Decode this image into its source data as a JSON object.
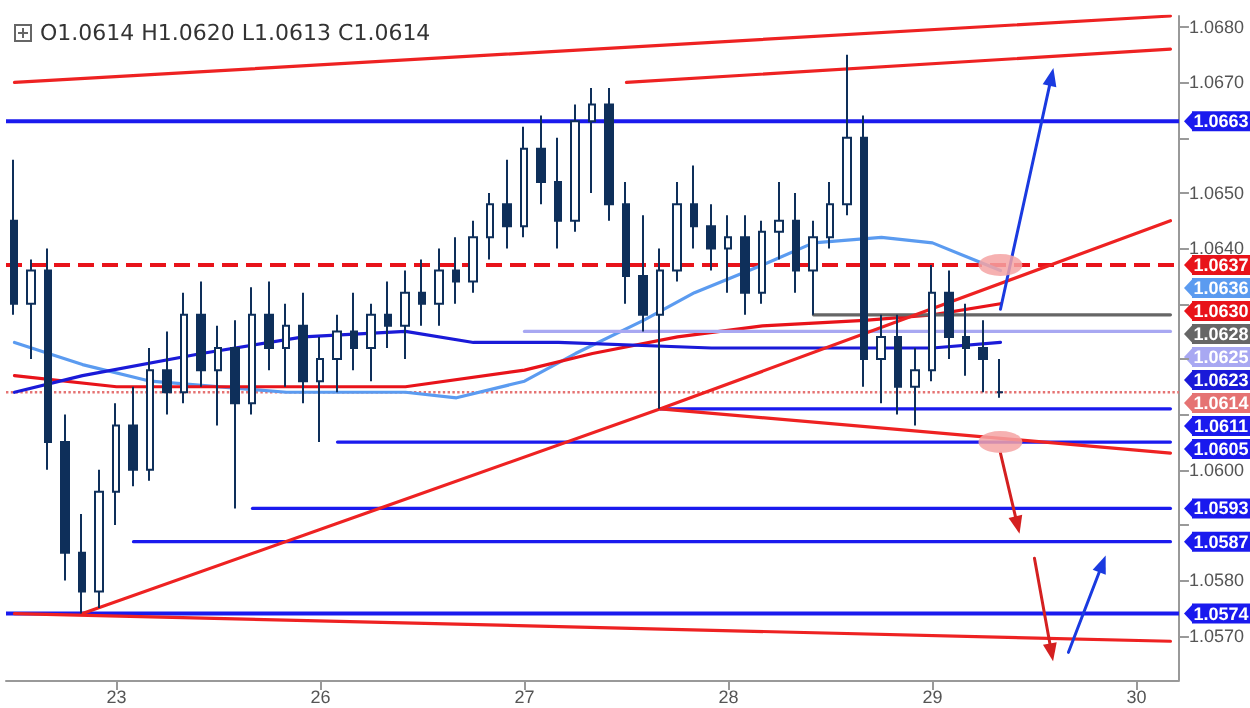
{
  "chart_data": {
    "type": "candlestick",
    "color": "#0e2f5a",
    "categories": [
      null,
      null,
      null,
      null,
      null,
      null,
      "23",
      null,
      null,
      null,
      null,
      null,
      null,
      null,
      null,
      null,
      null,
      null,
      "26",
      null,
      null,
      null,
      null,
      null,
      null,
      null,
      null,
      null,
      null,
      null,
      "27",
      null,
      null,
      null,
      null,
      null,
      null,
      null,
      null,
      null,
      null,
      null,
      "28",
      null,
      null,
      null,
      null,
      null,
      null,
      null,
      null,
      null,
      null,
      null,
      "29",
      null,
      null,
      null,
      null,
      null,
      null,
      null,
      null,
      null,
      null,
      null,
      "30",
      null,
      null
    ],
    "ohlc": [
      [
        1.0645,
        1.0656,
        1.0628,
        1.063
      ],
      [
        1.063,
        1.0638,
        1.062,
        1.0636
      ],
      [
        1.0636,
        1.064,
        1.06,
        1.0605
      ],
      [
        1.0605,
        1.061,
        1.058,
        1.0585
      ],
      [
        1.0585,
        1.0592,
        1.0574,
        1.0578
      ],
      [
        1.0578,
        1.06,
        1.0575,
        1.0596
      ],
      [
        1.0596,
        1.0612,
        1.059,
        1.0608
      ],
      [
        1.0608,
        1.0615,
        1.0597,
        1.06
      ],
      [
        1.06,
        1.0622,
        1.0598,
        1.0618
      ],
      [
        1.0618,
        1.0625,
        1.061,
        1.0614
      ],
      [
        1.0614,
        1.0632,
        1.0612,
        1.0628
      ],
      [
        1.0628,
        1.0634,
        1.0615,
        1.0618
      ],
      [
        1.0618,
        1.0626,
        1.0608,
        1.0622
      ],
      [
        1.0622,
        1.0627,
        1.0593,
        1.0612
      ],
      [
        1.0612,
        1.0633,
        1.061,
        1.0628
      ],
      [
        1.0628,
        1.0634,
        1.0618,
        1.0622
      ],
      [
        1.0622,
        1.063,
        1.0615,
        1.0626
      ],
      [
        1.0626,
        1.0632,
        1.0612,
        1.0616
      ],
      [
        1.0616,
        1.0624,
        1.0605,
        1.062
      ],
      [
        1.062,
        1.0628,
        1.0614,
        1.0625
      ],
      [
        1.0625,
        1.0632,
        1.0618,
        1.0622
      ],
      [
        1.0622,
        1.063,
        1.0616,
        1.0628
      ],
      [
        1.0628,
        1.0634,
        1.0622,
        1.0626
      ],
      [
        1.0626,
        1.0636,
        1.062,
        1.0632
      ],
      [
        1.0632,
        1.0638,
        1.0626,
        1.063
      ],
      [
        1.063,
        1.064,
        1.0626,
        1.0636
      ],
      [
        1.0636,
        1.0642,
        1.063,
        1.0634
      ],
      [
        1.0634,
        1.0645,
        1.0632,
        1.0642
      ],
      [
        1.0642,
        1.065,
        1.0638,
        1.0648
      ],
      [
        1.0648,
        1.0656,
        1.064,
        1.0644
      ],
      [
        1.0644,
        1.0662,
        1.0642,
        1.0658
      ],
      [
        1.0658,
        1.0664,
        1.0648,
        1.0652
      ],
      [
        1.0652,
        1.066,
        1.064,
        1.0645
      ],
      [
        1.0645,
        1.0666,
        1.0643,
        1.0663
      ],
      [
        1.0663,
        1.0669,
        1.065,
        1.0666
      ],
      [
        1.0666,
        1.0669,
        1.0645,
        1.0648
      ],
      [
        1.0648,
        1.0652,
        1.063,
        1.0635
      ],
      [
        1.0635,
        1.0646,
        1.0625,
        1.0628
      ],
      [
        1.0628,
        1.064,
        1.0611,
        1.0636
      ],
      [
        1.0636,
        1.0652,
        1.0634,
        1.0648
      ],
      [
        1.0648,
        1.0655,
        1.064,
        1.0644
      ],
      [
        1.0644,
        1.0648,
        1.0636,
        1.064
      ],
      [
        1.064,
        1.0646,
        1.0632,
        1.0642
      ],
      [
        1.0642,
        1.0646,
        1.0628,
        1.0632
      ],
      [
        1.0632,
        1.0645,
        1.063,
        1.0643
      ],
      [
        1.0643,
        1.0652,
        1.0638,
        1.0645
      ],
      [
        1.0645,
        1.065,
        1.0632,
        1.0636
      ],
      [
        1.0636,
        1.0645,
        1.0628,
        1.0642
      ],
      [
        1.0642,
        1.0652,
        1.064,
        1.0648
      ],
      [
        1.0648,
        1.0675,
        1.0646,
        1.066
      ],
      [
        1.066,
        1.0664,
        1.0615,
        1.062
      ],
      [
        1.062,
        1.0628,
        1.0612,
        1.0624
      ],
      [
        1.0624,
        1.0628,
        1.061,
        1.0615
      ],
      [
        1.0615,
        1.0622,
        1.0608,
        1.0618
      ],
      [
        1.0618,
        1.0637,
        1.0616,
        1.0632
      ],
      [
        1.0632,
        1.0636,
        1.062,
        1.0624
      ],
      [
        1.0624,
        1.063,
        1.0617,
        1.0622
      ],
      [
        1.0622,
        1.0627,
        1.0614,
        1.062
      ],
      [
        1.0614,
        1.062,
        1.0613,
        1.0614
      ],
      null,
      null,
      null,
      null,
      null,
      null,
      null,
      null,
      null,
      null
    ],
    "series": [
      {
        "type": "line",
        "name": "1.0636",
        "color": "#5b9bf0",
        "values": [
          1.0623,
          null,
          null,
          null,
          1.0619,
          null,
          null,
          null,
          1.0616,
          null,
          null,
          null,
          null,
          null,
          null,
          null,
          1.0614,
          null,
          null,
          null,
          null,
          null,
          null,
          1.0614,
          null,
          null,
          1.0613,
          null,
          null,
          null,
          1.0616,
          null,
          null,
          1.0621,
          null,
          null,
          null,
          1.0627,
          null,
          null,
          1.0632,
          null,
          null,
          null,
          1.0637,
          null,
          null,
          1.0641,
          null,
          null,
          null,
          1.0642,
          null,
          null,
          1.0641,
          null,
          null,
          null,
          1.0636,
          null,
          null,
          null,
          null,
          null,
          null,
          null,
          null,
          null,
          null
        ]
      },
      {
        "type": "line",
        "name": "1.0630",
        "color": "#e8131a",
        "values": [
          1.0617,
          null,
          null,
          null,
          null,
          null,
          1.0615,
          null,
          null,
          null,
          null,
          null,
          null,
          1.0615,
          null,
          null,
          null,
          null,
          null,
          null,
          null,
          null,
          null,
          1.0615,
          null,
          null,
          null,
          null,
          null,
          null,
          1.0618,
          null,
          null,
          null,
          1.0621,
          null,
          null,
          null,
          null,
          1.0624,
          null,
          null,
          null,
          null,
          1.0626,
          null,
          null,
          null,
          null,
          null,
          1.0627,
          null,
          null,
          null,
          1.0628,
          null,
          null,
          null,
          1.063,
          null,
          null,
          null,
          null,
          null,
          null,
          null,
          null,
          null,
          null
        ]
      },
      {
        "type": "line",
        "name": "1.0623",
        "color": "#1a1ad8",
        "values": [
          1.0614,
          null,
          null,
          null,
          1.0617,
          null,
          null,
          null,
          null,
          null,
          null,
          1.0621,
          null,
          null,
          null,
          null,
          null,
          1.0624,
          null,
          null,
          null,
          null,
          null,
          1.0625,
          null,
          null,
          null,
          1.0623,
          null,
          null,
          null,
          null,
          1.0623,
          null,
          null,
          null,
          null,
          null,
          null,
          null,
          null,
          1.0622,
          null,
          null,
          null,
          null,
          null,
          null,
          1.0622,
          null,
          null,
          null,
          null,
          null,
          1.0622,
          null,
          null,
          null,
          1.0623,
          null,
          null,
          null,
          null,
          null,
          null,
          null,
          null,
          null,
          null
        ]
      },
      {
        "type": "line",
        "name": "1.0628",
        "color": "#666666",
        "values": [
          null,
          null,
          null,
          null,
          null,
          null,
          null,
          null,
          null,
          null,
          null,
          null,
          null,
          null,
          null,
          null,
          null,
          null,
          null,
          null,
          null,
          null,
          null,
          null,
          null,
          null,
          null,
          null,
          null,
          null,
          null,
          null,
          null,
          null,
          null,
          null,
          null,
          null,
          null,
          null,
          null,
          null,
          null,
          null,
          null,
          null,
          null,
          1.0628,
          null,
          null,
          null,
          null,
          null,
          null,
          null,
          null,
          null,
          null,
          null,
          null,
          null,
          null,
          null,
          null,
          null,
          null,
          null,
          null,
          1.0628
        ]
      },
      {
        "type": "line",
        "name": "1.0625",
        "color": "#a8a8f2",
        "values": [
          null,
          null,
          null,
          null,
          null,
          null,
          null,
          null,
          null,
          null,
          null,
          null,
          null,
          null,
          null,
          null,
          null,
          null,
          null,
          null,
          null,
          null,
          null,
          null,
          null,
          null,
          null,
          null,
          null,
          null,
          1.0625,
          null,
          null,
          null,
          null,
          null,
          null,
          null,
          null,
          null,
          null,
          null,
          null,
          null,
          null,
          null,
          null,
          null,
          null,
          null,
          null,
          null,
          null,
          null,
          null,
          null,
          null,
          null,
          null,
          null,
          null,
          null,
          null,
          null,
          null,
          null,
          null,
          null,
          1.0625
        ]
      },
      {
        "type": "line",
        "name": "1.0611",
        "color": "#1a1aee",
        "values": [
          null,
          null,
          null,
          null,
          null,
          null,
          null,
          null,
          null,
          null,
          null,
          null,
          null,
          null,
          null,
          null,
          null,
          null,
          null,
          null,
          null,
          null,
          null,
          null,
          null,
          null,
          null,
          null,
          null,
          null,
          null,
          null,
          null,
          null,
          null,
          null,
          null,
          null,
          1.0611,
          null,
          null,
          null,
          null,
          null,
          null,
          null,
          null,
          null,
          null,
          null,
          null,
          null,
          null,
          null,
          null,
          null,
          null,
          null,
          null,
          null,
          null,
          null,
          null,
          null,
          null,
          null,
          null,
          null,
          1.0611
        ]
      },
      {
        "type": "line",
        "name": "1.0605",
        "color": "#1a1aee",
        "values": [
          null,
          null,
          null,
          null,
          null,
          null,
          null,
          null,
          null,
          null,
          null,
          null,
          null,
          null,
          null,
          null,
          null,
          null,
          null,
          1.0605,
          null,
          null,
          null,
          null,
          null,
          null,
          null,
          null,
          null,
          null,
          null,
          null,
          null,
          null,
          null,
          null,
          null,
          null,
          null,
          null,
          null,
          null,
          null,
          null,
          null,
          null,
          null,
          null,
          null,
          null,
          null,
          null,
          null,
          null,
          null,
          null,
          null,
          null,
          null,
          null,
          null,
          null,
          null,
          null,
          null,
          null,
          null,
          null,
          1.0605
        ]
      },
      {
        "type": "line",
        "name": "1.0593",
        "color": "#1a1aee",
        "values": [
          null,
          null,
          null,
          null,
          null,
          null,
          null,
          null,
          null,
          null,
          null,
          null,
          null,
          null,
          1.0593,
          null,
          null,
          null,
          null,
          null,
          null,
          null,
          null,
          null,
          null,
          null,
          null,
          null,
          null,
          null,
          null,
          null,
          null,
          null,
          null,
          null,
          null,
          null,
          null,
          null,
          null,
          null,
          null,
          null,
          null,
          null,
          null,
          null,
          null,
          null,
          null,
          null,
          null,
          null,
          null,
          null,
          null,
          null,
          null,
          null,
          null,
          null,
          null,
          null,
          null,
          null,
          null,
          null,
          1.0593
        ]
      },
      {
        "type": "line",
        "name": "1.0587",
        "color": "#1a1aee",
        "values": [
          null,
          null,
          null,
          null,
          null,
          null,
          null,
          1.0587,
          null,
          null,
          null,
          null,
          null,
          null,
          null,
          null,
          null,
          null,
          null,
          null,
          null,
          null,
          null,
          null,
          null,
          null,
          null,
          null,
          null,
          null,
          null,
          null,
          null,
          null,
          null,
          null,
          null,
          null,
          null,
          null,
          null,
          null,
          null,
          null,
          null,
          null,
          null,
          null,
          null,
          null,
          null,
          null,
          null,
          null,
          null,
          null,
          null,
          null,
          null,
          null,
          null,
          null,
          null,
          null,
          null,
          null,
          null,
          null,
          1.0587
        ]
      },
      {
        "type": "line",
        "color": "#ee2222",
        "values": [
          1.067,
          null,
          null,
          null,
          null,
          null,
          null,
          null,
          null,
          null,
          null,
          null,
          null,
          null,
          null,
          null,
          null,
          null,
          null,
          null,
          null,
          null,
          null,
          null,
          null,
          null,
          null,
          null,
          null,
          null,
          null,
          null,
          null,
          null,
          null,
          null,
          null,
          null,
          null,
          null,
          null,
          null,
          null,
          null,
          null,
          null,
          null,
          null,
          null,
          null,
          null,
          null,
          null,
          null,
          null,
          null,
          null,
          null,
          null,
          null,
          null,
          null,
          null,
          null,
          null,
          null,
          null,
          null,
          1.0682
        ]
      },
      {
        "type": "line",
        "color": "#ee2222",
        "values": [
          null,
          null,
          null,
          null,
          null,
          null,
          null,
          null,
          null,
          null,
          null,
          null,
          null,
          null,
          null,
          null,
          null,
          null,
          null,
          null,
          null,
          null,
          null,
          null,
          null,
          null,
          null,
          null,
          null,
          null,
          null,
          null,
          null,
          null,
          null,
          null,
          1.067,
          null,
          null,
          null,
          null,
          null,
          null,
          null,
          null,
          null,
          null,
          null,
          null,
          null,
          null,
          null,
          null,
          null,
          null,
          null,
          null,
          null,
          null,
          null,
          null,
          null,
          null,
          null,
          null,
          null,
          null,
          null,
          1.0676
        ]
      },
      {
        "type": "line",
        "color": "#ee2222",
        "values": [
          null,
          null,
          null,
          null,
          1.0574,
          null,
          null,
          null,
          null,
          null,
          null,
          null,
          null,
          null,
          null,
          null,
          null,
          null,
          null,
          null,
          null,
          null,
          null,
          null,
          null,
          null,
          null,
          null,
          null,
          null,
          null,
          null,
          null,
          null,
          null,
          null,
          null,
          null,
          1.0611,
          null,
          null,
          null,
          null,
          null,
          null,
          null,
          null,
          null,
          null,
          null,
          null,
          null,
          null,
          null,
          null,
          null,
          null,
          null,
          null,
          null,
          null,
          null,
          null,
          null,
          null,
          null,
          null,
          null,
          1.0645
        ]
      },
      {
        "type": "line",
        "color": "#ee2222",
        "values": [
          null,
          null,
          null,
          null,
          null,
          null,
          null,
          null,
          null,
          null,
          null,
          null,
          null,
          null,
          null,
          null,
          null,
          null,
          null,
          null,
          null,
          null,
          null,
          null,
          null,
          null,
          null,
          null,
          null,
          null,
          null,
          null,
          null,
          null,
          null,
          null,
          null,
          null,
          1.0611,
          null,
          null,
          null,
          null,
          null,
          null,
          null,
          null,
          null,
          null,
          null,
          null,
          null,
          null,
          null,
          null,
          null,
          null,
          null,
          null,
          null,
          null,
          null,
          null,
          null,
          null,
          null,
          null,
          null,
          1.0603
        ]
      },
      {
        "type": "line",
        "color": "#ee2222",
        "values": [
          1.0574,
          null,
          null,
          null,
          null,
          null,
          null,
          null,
          null,
          null,
          null,
          null,
          null,
          null,
          null,
          null,
          null,
          null,
          null,
          null,
          null,
          null,
          null,
          null,
          null,
          null,
          null,
          null,
          null,
          null,
          null,
          null,
          null,
          null,
          null,
          null,
          null,
          null,
          null,
          null,
          null,
          null,
          null,
          null,
          null,
          null,
          null,
          null,
          null,
          null,
          null,
          null,
          null,
          null,
          null,
          null,
          null,
          null,
          null,
          null,
          null,
          null,
          null,
          null,
          null,
          null,
          null,
          null,
          1.0569
        ]
      },
      {
        "type": "line",
        "marker": "triangle",
        "color": "#1a3ae0",
        "values": [
          null,
          null,
          null,
          null,
          null,
          null,
          null,
          null,
          null,
          null,
          null,
          null,
          null,
          null,
          null,
          null,
          null,
          null,
          null,
          null,
          null,
          null,
          null,
          null,
          null,
          null,
          null,
          null,
          null,
          null,
          null,
          null,
          null,
          null,
          null,
          null,
          null,
          null,
          null,
          null,
          null,
          null,
          null,
          null,
          null,
          null,
          null,
          null,
          null,
          null,
          null,
          null,
          null,
          null,
          null,
          null,
          null,
          null,
          1.0629,
          null,
          null,
          1.0671,
          null,
          null,
          null,
          null,
          null,
          null,
          null
        ]
      },
      {
        "type": "line",
        "marker": "triangle",
        "color": "#d42020",
        "values": [
          null,
          null,
          null,
          null,
          null,
          null,
          null,
          null,
          null,
          null,
          null,
          null,
          null,
          null,
          null,
          null,
          null,
          null,
          null,
          null,
          null,
          null,
          null,
          null,
          null,
          null,
          null,
          null,
          null,
          null,
          null,
          null,
          null,
          null,
          null,
          null,
          null,
          null,
          null,
          null,
          null,
          null,
          null,
          null,
          null,
          null,
          null,
          null,
          null,
          null,
          null,
          null,
          null,
          null,
          null,
          null,
          null,
          null,
          1.0603,
          1.059,
          null,
          null,
          null,
          null,
          null,
          null,
          null,
          null,
          null
        ]
      },
      {
        "type": "line",
        "marker": "triangle",
        "color": "#d42020",
        "values": [
          null,
          null,
          null,
          null,
          null,
          null,
          null,
          null,
          null,
          null,
          null,
          null,
          null,
          null,
          null,
          null,
          null,
          null,
          null,
          null,
          null,
          null,
          null,
          null,
          null,
          null,
          null,
          null,
          null,
          null,
          null,
          null,
          null,
          null,
          null,
          null,
          null,
          null,
          null,
          null,
          null,
          null,
          null,
          null,
          null,
          null,
          null,
          null,
          null,
          null,
          null,
          null,
          null,
          null,
          null,
          null,
          null,
          null,
          null,
          null,
          1.0584,
          1.0567,
          null,
          null,
          null,
          null,
          null,
          null,
          null
        ]
      },
      {
        "type": "line",
        "marker": "triangle",
        "color": "#1a3ae0",
        "values": [
          null,
          null,
          null,
          null,
          null,
          null,
          null,
          null,
          null,
          null,
          null,
          null,
          null,
          null,
          null,
          null,
          null,
          null,
          null,
          null,
          null,
          null,
          null,
          null,
          null,
          null,
          null,
          null,
          null,
          null,
          null,
          null,
          null,
          null,
          null,
          null,
          null,
          null,
          null,
          null,
          null,
          null,
          null,
          null,
          null,
          null,
          null,
          null,
          null,
          null,
          null,
          null,
          null,
          null,
          null,
          null,
          null,
          null,
          null,
          null,
          null,
          null,
          1.0567,
          null,
          1.0583,
          null,
          null,
          null,
          null
        ]
      },
      {
        "type": "scatter",
        "marker": "circle",
        "color": "#f5a3a3",
        "values": [
          null,
          null,
          null,
          null,
          null,
          null,
          null,
          null,
          null,
          null,
          null,
          null,
          null,
          null,
          null,
          null,
          null,
          null,
          null,
          null,
          null,
          null,
          null,
          null,
          null,
          null,
          null,
          null,
          null,
          null,
          null,
          null,
          null,
          null,
          null,
          null,
          null,
          null,
          null,
          null,
          null,
          null,
          null,
          null,
          null,
          null,
          null,
          null,
          null,
          null,
          null,
          null,
          null,
          null,
          null,
          null,
          null,
          null,
          1.0637,
          null,
          null,
          null,
          null,
          null,
          null,
          null,
          null,
          null,
          null
        ]
      },
      {
        "type": "scatter",
        "marker": "circle",
        "color": "#f5a3a3",
        "values": [
          null,
          null,
          null,
          null,
          null,
          null,
          null,
          null,
          null,
          null,
          null,
          null,
          null,
          null,
          null,
          null,
          null,
          null,
          null,
          null,
          null,
          null,
          null,
          null,
          null,
          null,
          null,
          null,
          null,
          null,
          null,
          null,
          null,
          null,
          null,
          null,
          null,
          null,
          null,
          null,
          null,
          null,
          null,
          null,
          null,
          null,
          null,
          null,
          null,
          null,
          null,
          null,
          null,
          null,
          null,
          null,
          null,
          null,
          1.0605,
          null,
          null,
          null,
          null,
          null,
          null,
          null,
          null,
          null,
          null
        ]
      }
    ],
    "ref_lines": [
      {
        "axis": "y",
        "value": 1.0663,
        "label": "1.0663",
        "color": "#1a1aee"
      },
      {
        "axis": "y",
        "value": 1.0637,
        "label": "1.0637",
        "color": "#e8131a",
        "line_style": "dashed"
      },
      {
        "axis": "y",
        "value": 1.0614,
        "label": "1.0614",
        "color": "#e57373",
        "line_style": "dotted"
      },
      {
        "axis": "y",
        "value": 1.0574,
        "label": "1.0574",
        "color": "#1a1aee"
      }
    ],
    "annotations": [
      "O1.0614 H1.0620 L1.0613 C1.0614"
    ],
    "ylim": [
      1.0562,
      1.0682
    ],
    "yticks": [
      {
        "value": 1.057,
        "label": "1.0570"
      },
      {
        "value": 1.058,
        "label": "1.0580"
      },
      {
        "value": 1.059,
        "label": null
      },
      {
        "value": 1.06,
        "label": "1.0600"
      },
      {
        "value": 1.061,
        "label": null
      },
      {
        "value": 1.062,
        "label": null
      },
      {
        "value": 1.063,
        "label": null
      },
      {
        "value": 1.064,
        "label": "1.0640"
      },
      {
        "value": 1.065,
        "label": "1.0650"
      },
      {
        "value": 1.066,
        "label": null
      },
      {
        "value": 1.067,
        "label": "1.0670"
      },
      {
        "value": 1.068,
        "label": "1.0680"
      }
    ],
    "legend": "right"
  }
}
